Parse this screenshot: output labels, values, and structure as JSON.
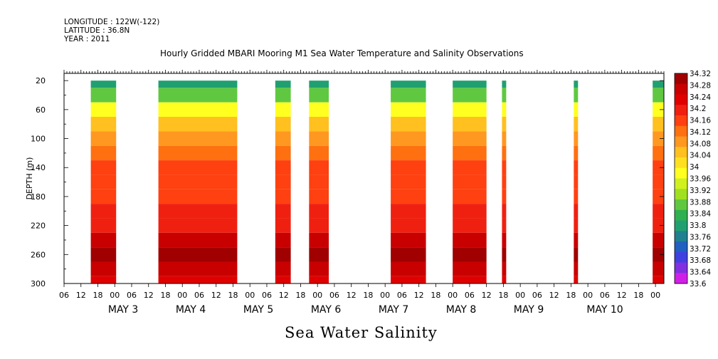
{
  "header": {
    "longitude": "LONGITUDE : 122W(-122)",
    "latitude": "LATITUDE : 36.8N",
    "year": "YEAR : 2011"
  },
  "title": "Hourly Gridded MBARI Mooring M1 Sea Water Temperature and Salinity Observations",
  "variable_title": "Sea Water Salinity",
  "chart_data": {
    "type": "heatmap",
    "ylabel": "DEPTH (m)",
    "y_ticks": [
      20,
      60,
      100,
      140,
      180,
      220,
      260,
      300
    ],
    "ylim": [
      300,
      10
    ],
    "x_hour_ticks": [
      "06",
      "12",
      "18",
      "00",
      "06",
      "12",
      "18",
      "00",
      "06",
      "12",
      "18",
      "00",
      "06",
      "12",
      "18",
      "00",
      "06",
      "12",
      "18",
      "00",
      "06",
      "12",
      "18",
      "00",
      "06",
      "12",
      "18",
      "00",
      "06",
      "12",
      "18",
      "00",
      "06",
      "12",
      "18",
      "00"
    ],
    "day_labels": [
      "MAY 3",
      "MAY 4",
      "MAY 5",
      "MAY 6",
      "MAY 7",
      "MAY 8",
      "MAY 9",
      "MAY 10"
    ],
    "xlim_hours": [
      0,
      213
    ],
    "colorbar_levels": [
      "34.32",
      "34.28",
      "34.24",
      "34.2",
      "34.16",
      "34.12",
      "34.08",
      "34.04",
      "34",
      "33.96",
      "33.92",
      "33.88",
      "33.84",
      "33.8",
      "33.76",
      "33.72",
      "33.68",
      "33.64",
      "33.6"
    ],
    "colorbar_colors": [
      "#a00000",
      "#c80000",
      "#e00000",
      "#f02010",
      "#ff4010",
      "#ff7010",
      "#ff9820",
      "#ffc020",
      "#ffe020",
      "#ffff20",
      "#d0f020",
      "#a0e020",
      "#60c840",
      "#30b050",
      "#20a070",
      "#208090",
      "#2060c0",
      "#4040e0",
      "#8030e0",
      "#d020e8"
    ],
    "data_segments": [
      {
        "start_hour": 9.5,
        "end_hour": 18.5
      },
      {
        "start_hour": 33.5,
        "end_hour": 61.5
      },
      {
        "start_hour": 75,
        "end_hour": 80.5
      },
      {
        "start_hour": 87,
        "end_hour": 94
      },
      {
        "start_hour": 116,
        "end_hour": 128.5
      },
      {
        "start_hour": 138,
        "end_hour": 150
      },
      {
        "start_hour": 155.5,
        "end_hour": 157
      },
      {
        "start_hour": 181,
        "end_hour": 182.5
      },
      {
        "start_hour": 209,
        "end_hour": 213
      }
    ],
    "depth_profile": [
      {
        "depth": 20,
        "salinity": 33.8
      },
      {
        "depth": 40,
        "salinity": 33.88
      },
      {
        "depth": 60,
        "salinity": 33.98
      },
      {
        "depth": 80,
        "salinity": 34.06
      },
      {
        "depth": 100,
        "salinity": 34.1
      },
      {
        "depth": 120,
        "salinity": 34.12
      },
      {
        "depth": 140,
        "salinity": 34.14
      },
      {
        "depth": 160,
        "salinity": 34.16
      },
      {
        "depth": 180,
        "salinity": 34.16
      },
      {
        "depth": 200,
        "salinity": 34.18
      },
      {
        "depth": 220,
        "salinity": 34.2
      },
      {
        "depth": 240,
        "salinity": 34.26
      },
      {
        "depth": 260,
        "salinity": 34.3
      },
      {
        "depth": 280,
        "salinity": 34.26
      },
      {
        "depth": 300,
        "salinity": 34.24
      }
    ]
  }
}
